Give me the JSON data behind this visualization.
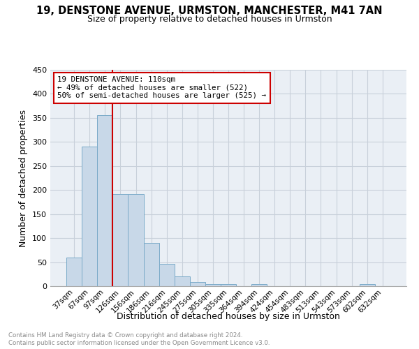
{
  "title": "19, DENSTONE AVENUE, URMSTON, MANCHESTER, M41 7AN",
  "subtitle": "Size of property relative to detached houses in Urmston",
  "xlabel": "Distribution of detached houses by size in Urmston",
  "ylabel": "Number of detached properties",
  "footnote1": "Contains HM Land Registry data © Crown copyright and database right 2024.",
  "footnote2": "Contains public sector information licensed under the Open Government Licence v3.0.",
  "bin_labels": [
    "37sqm",
    "67sqm",
    "97sqm",
    "126sqm",
    "156sqm",
    "186sqm",
    "216sqm",
    "245sqm",
    "275sqm",
    "305sqm",
    "335sqm",
    "364sqm",
    "394sqm",
    "424sqm",
    "454sqm",
    "483sqm",
    "513sqm",
    "543sqm",
    "573sqm",
    "602sqm",
    "632sqm"
  ],
  "bar_values": [
    60,
    290,
    355,
    192,
    192,
    90,
    46,
    21,
    9,
    5,
    5,
    0,
    5,
    0,
    0,
    0,
    0,
    0,
    0,
    5,
    0
  ],
  "bar_color": "#c8d8e8",
  "bar_edge_color": "#7aaac8",
  "grid_color": "#c8d0da",
  "bg_color": "#eaeff5",
  "red_line_x": 2.5,
  "annotation_text": "19 DENSTONE AVENUE: 110sqm\n← 49% of detached houses are smaller (522)\n50% of semi-detached houses are larger (525) →",
  "annotation_box_color": "#ffffff",
  "annotation_box_edge": "#cc0000",
  "red_line_color": "#cc0000",
  "ylim": [
    0,
    450
  ],
  "yticks": [
    0,
    50,
    100,
    150,
    200,
    250,
    300,
    350,
    400,
    450
  ]
}
